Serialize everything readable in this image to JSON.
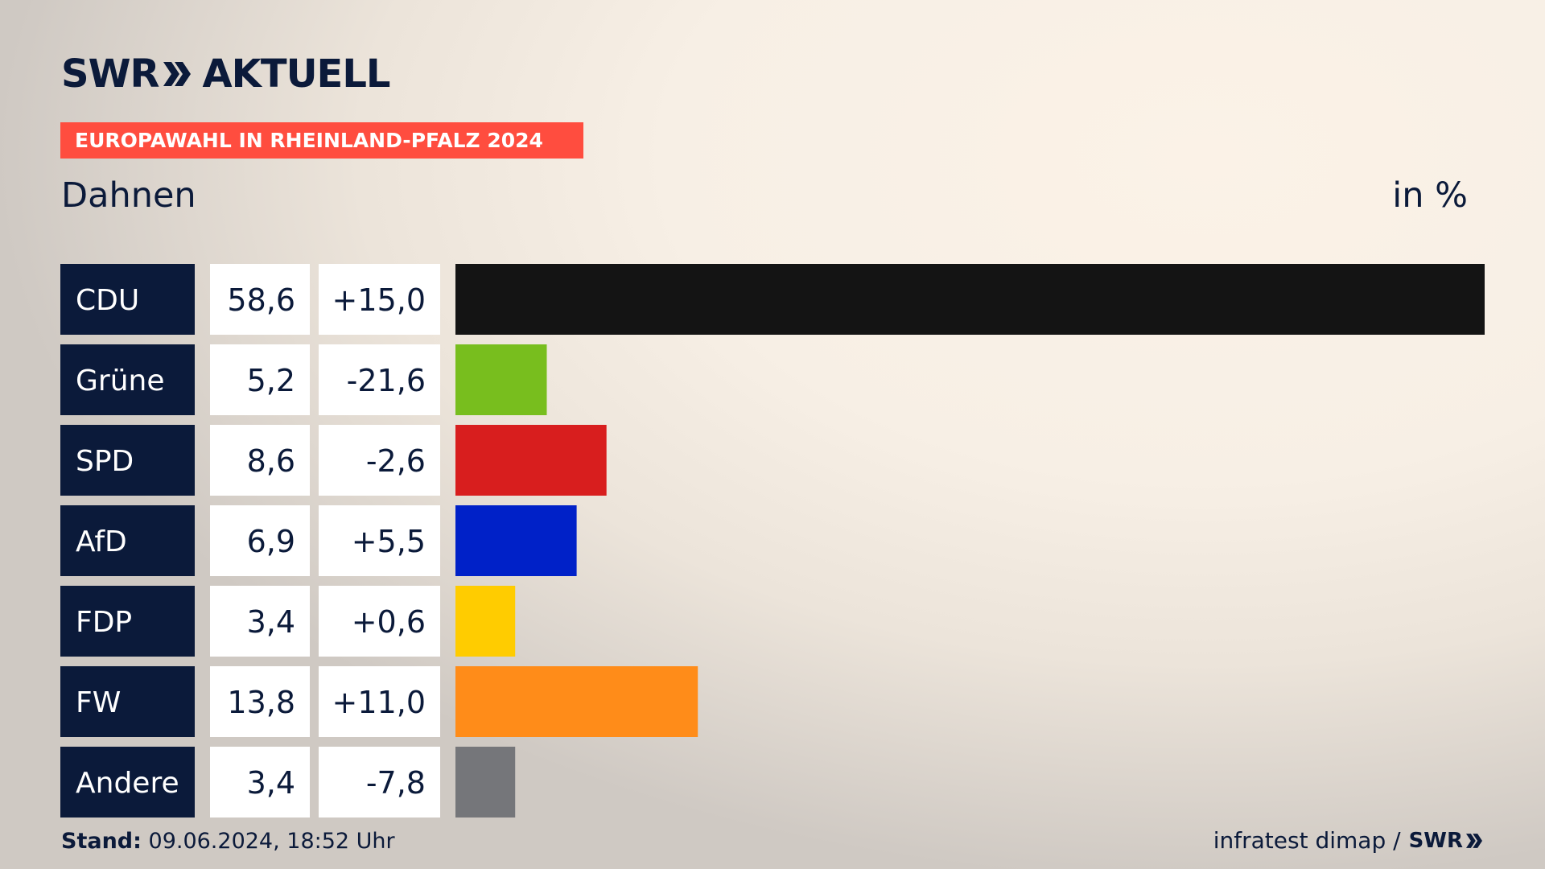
{
  "brand": {
    "name_left": "SWR",
    "name_right": "AKTUELL"
  },
  "header": {
    "badge": "EUROPAWAHL IN RHEINLAND-PFALZ 2024",
    "region": "Dahnen",
    "unit": "in %"
  },
  "footer": {
    "stand_label": "Stand:",
    "stand_value": "09.06.2024, 18:52 Uhr",
    "source": "infratest dimap /",
    "source_logo": "SWR"
  },
  "colors": {
    "navy": "#0b1a3a",
    "badge": "#ff4d3f"
  },
  "chart_data": {
    "type": "bar",
    "orientation": "horizontal",
    "categories": [
      "CDU",
      "Grüne",
      "SPD",
      "AfD",
      "FDP",
      "FW",
      "Andere"
    ],
    "values": [
      58.6,
      5.2,
      8.6,
      6.9,
      3.4,
      13.8,
      3.4
    ],
    "values_label": [
      "58,6",
      "5,2",
      "8,6",
      "6,9",
      "3,4",
      "13,8",
      "3,4"
    ],
    "change": [
      15.0,
      -21.6,
      -2.6,
      5.5,
      0.6,
      11.0,
      -7.8
    ],
    "change_label": [
      "+15,0",
      "-21,6",
      "-2,6",
      "+5,5",
      "+0,6",
      "+11,0",
      "-7,8"
    ],
    "bar_colors": [
      "#141414",
      "#78be1e",
      "#d81e1e",
      "#0021c8",
      "#ffcc00",
      "#ff8c19",
      "#75767a"
    ],
    "xlim": [
      0,
      58.6
    ],
    "unit": "in %",
    "grid": false,
    "legend": "none"
  }
}
